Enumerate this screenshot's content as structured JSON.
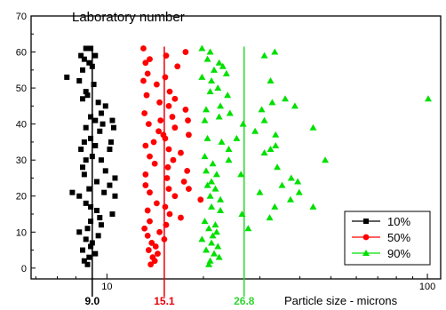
{
  "chart_data": {
    "type": "scatter",
    "title": "",
    "xlabel": "Particle size - microns",
    "ylabel": "Laboratory number",
    "x_scale": "log",
    "xlim": [
      5.8,
      110
    ],
    "ylim": [
      -3,
      70
    ],
    "y_ticks": [
      0,
      10,
      20,
      30,
      40,
      50,
      60,
      70
    ],
    "x_ticks": [
      {
        "value": 10,
        "label": "10"
      },
      {
        "value": 100,
        "label": "100"
      }
    ],
    "reference_lines": [
      {
        "value": 9.0,
        "label": "9.0",
        "color": "#000000"
      },
      {
        "value": 15.1,
        "label": "15.1",
        "color": "#e8000b"
      },
      {
        "value": 26.8,
        "label": "26.8",
        "color": "#2fd62f"
      }
    ],
    "legend": {
      "position": "bottom-right",
      "entries": [
        "10%",
        "50%",
        "90%"
      ]
    },
    "series": [
      {
        "name": "10%",
        "marker": "square",
        "color": "#000000",
        "points": [
          [
            8.6,
            61
          ],
          [
            8.9,
            61
          ],
          [
            8.3,
            59
          ],
          [
            9.2,
            59
          ],
          [
            8.5,
            58
          ],
          [
            8.8,
            57
          ],
          [
            9.0,
            56
          ],
          [
            8.4,
            55
          ],
          [
            7.5,
            53
          ],
          [
            8.2,
            52
          ],
          [
            9.1,
            51
          ],
          [
            8.6,
            49
          ],
          [
            8.7,
            48
          ],
          [
            8.4,
            47
          ],
          [
            9.4,
            46
          ],
          [
            9.9,
            45
          ],
          [
            9.6,
            43
          ],
          [
            8.9,
            42
          ],
          [
            9.2,
            41
          ],
          [
            10.4,
            41
          ],
          [
            9.7,
            40
          ],
          [
            8.6,
            39
          ],
          [
            10.5,
            39
          ],
          [
            9.5,
            38
          ],
          [
            8.9,
            36
          ],
          [
            8.5,
            35
          ],
          [
            10.3,
            35
          ],
          [
            9.2,
            34
          ],
          [
            8.3,
            33
          ],
          [
            10.2,
            33
          ],
          [
            9.0,
            31
          ],
          [
            8.6,
            30
          ],
          [
            9.6,
            30
          ],
          [
            8.4,
            28
          ],
          [
            9.9,
            27
          ],
          [
            8.5,
            26
          ],
          [
            10.6,
            25
          ],
          [
            9.3,
            24
          ],
          [
            10.2,
            23
          ],
          [
            8.8,
            22
          ],
          [
            7.8,
            21
          ],
          [
            9.8,
            21
          ],
          [
            8.2,
            20
          ],
          [
            10.6,
            20
          ],
          [
            8.6,
            18
          ],
          [
            8.9,
            17
          ],
          [
            9.3,
            16
          ],
          [
            10.4,
            15
          ],
          [
            9.5,
            14
          ],
          [
            8.9,
            13
          ],
          [
            9.6,
            12
          ],
          [
            8.7,
            11
          ],
          [
            8.2,
            10
          ],
          [
            9.4,
            9
          ],
          [
            8.6,
            8
          ],
          [
            9.0,
            7
          ],
          [
            8.9,
            6
          ],
          [
            8.4,
            5
          ],
          [
            9.2,
            4
          ],
          [
            8.8,
            3
          ],
          [
            8.5,
            2
          ],
          [
            8.7,
            1
          ]
        ]
      },
      {
        "name": "50%",
        "marker": "circle",
        "color": "#ff0000",
        "points": [
          [
            13.0,
            61
          ],
          [
            15.3,
            59
          ],
          [
            13.6,
            58
          ],
          [
            17.6,
            60
          ],
          [
            13.2,
            57
          ],
          [
            16.6,
            56
          ],
          [
            13.4,
            54
          ],
          [
            15.2,
            53
          ],
          [
            13.0,
            52
          ],
          [
            14.3,
            51
          ],
          [
            15.7,
            49
          ],
          [
            13.3,
            48
          ],
          [
            16.3,
            47
          ],
          [
            14.6,
            46
          ],
          [
            15.6,
            45
          ],
          [
            17.6,
            44
          ],
          [
            13.1,
            43
          ],
          [
            16.0,
            42
          ],
          [
            14.7,
            41
          ],
          [
            17.9,
            41
          ],
          [
            13.5,
            40
          ],
          [
            16.3,
            39
          ],
          [
            14.5,
            38
          ],
          [
            15.0,
            37
          ],
          [
            18.0,
            37
          ],
          [
            15.2,
            36
          ],
          [
            14.0,
            35
          ],
          [
            13.2,
            34
          ],
          [
            15.6,
            33
          ],
          [
            17.0,
            32
          ],
          [
            13.6,
            31
          ],
          [
            16.1,
            30
          ],
          [
            14.1,
            29
          ],
          [
            15.5,
            28
          ],
          [
            17.8,
            27
          ],
          [
            13.2,
            26
          ],
          [
            15.4,
            25
          ],
          [
            17.4,
            24
          ],
          [
            13.2,
            23
          ],
          [
            15.6,
            22
          ],
          [
            18.0,
            22
          ],
          [
            13.6,
            21
          ],
          [
            16.3,
            20
          ],
          [
            19.6,
            19
          ],
          [
            14.3,
            18
          ],
          [
            15.2,
            17
          ],
          [
            13.4,
            16
          ],
          [
            15.7,
            15
          ],
          [
            17.0,
            14
          ],
          [
            13.6,
            13
          ],
          [
            15.3,
            12
          ],
          [
            13.1,
            11
          ],
          [
            14.6,
            10
          ],
          [
            13.4,
            9
          ],
          [
            15.1,
            8
          ],
          [
            13.8,
            7
          ],
          [
            14.2,
            6
          ],
          [
            13.5,
            5
          ],
          [
            14.4,
            4
          ],
          [
            13.9,
            3
          ],
          [
            14.1,
            2
          ],
          [
            13.7,
            1
          ]
        ]
      },
      {
        "name": "90%",
        "marker": "triangle",
        "color": "#00e000",
        "points": [
          [
            19.8,
            61
          ],
          [
            21.0,
            60
          ],
          [
            33.4,
            60
          ],
          [
            31.0,
            59
          ],
          [
            20.6,
            58
          ],
          [
            22.4,
            57
          ],
          [
            23.0,
            56
          ],
          [
            21.6,
            55
          ],
          [
            23.6,
            54
          ],
          [
            19.8,
            53
          ],
          [
            21.2,
            52
          ],
          [
            32.4,
            52
          ],
          [
            22.2,
            50
          ],
          [
            21.0,
            49
          ],
          [
            23.8,
            48
          ],
          [
            36.0,
            47
          ],
          [
            100.6,
            47
          ],
          [
            32.8,
            46
          ],
          [
            22.6,
            45
          ],
          [
            38.6,
            45
          ],
          [
            20.4,
            44
          ],
          [
            30.4,
            44
          ],
          [
            24.2,
            43
          ],
          [
            22.4,
            42
          ],
          [
            20.2,
            41
          ],
          [
            31.0,
            41
          ],
          [
            26.6,
            40
          ],
          [
            44.0,
            39
          ],
          [
            29.0,
            38
          ],
          [
            33.6,
            37
          ],
          [
            20.6,
            36
          ],
          [
            25.4,
            36
          ],
          [
            22.8,
            35
          ],
          [
            33.6,
            34
          ],
          [
            24.0,
            33
          ],
          [
            32.4,
            33
          ],
          [
            31.0,
            32
          ],
          [
            20.2,
            31
          ],
          [
            24.0,
            30
          ],
          [
            48.0,
            30
          ],
          [
            21.4,
            29
          ],
          [
            34.0,
            28
          ],
          [
            20.4,
            27
          ],
          [
            22.0,
            26
          ],
          [
            26.2,
            26
          ],
          [
            37.6,
            25
          ],
          [
            21.2,
            24
          ],
          [
            39.4,
            24
          ],
          [
            20.6,
            23
          ],
          [
            35.2,
            23
          ],
          [
            21.8,
            22
          ],
          [
            30.0,
            21
          ],
          [
            39.8,
            21
          ],
          [
            21.0,
            20
          ],
          [
            22.6,
            19
          ],
          [
            37.4,
            19
          ],
          [
            21.2,
            17
          ],
          [
            33.4,
            17
          ],
          [
            44.0,
            17
          ],
          [
            22.6,
            16
          ],
          [
            26.4,
            15
          ],
          [
            32.2,
            14
          ],
          [
            20.2,
            13
          ],
          [
            21.8,
            12
          ],
          [
            20.8,
            11
          ],
          [
            27.6,
            11
          ],
          [
            22.0,
            10
          ],
          [
            21.4,
            9
          ],
          [
            19.8,
            8
          ],
          [
            21.2,
            7
          ],
          [
            22.2,
            6
          ],
          [
            20.4,
            5
          ],
          [
            21.6,
            4
          ],
          [
            22.4,
            3
          ],
          [
            21.0,
            2
          ],
          [
            20.8,
            1
          ]
        ]
      }
    ]
  }
}
